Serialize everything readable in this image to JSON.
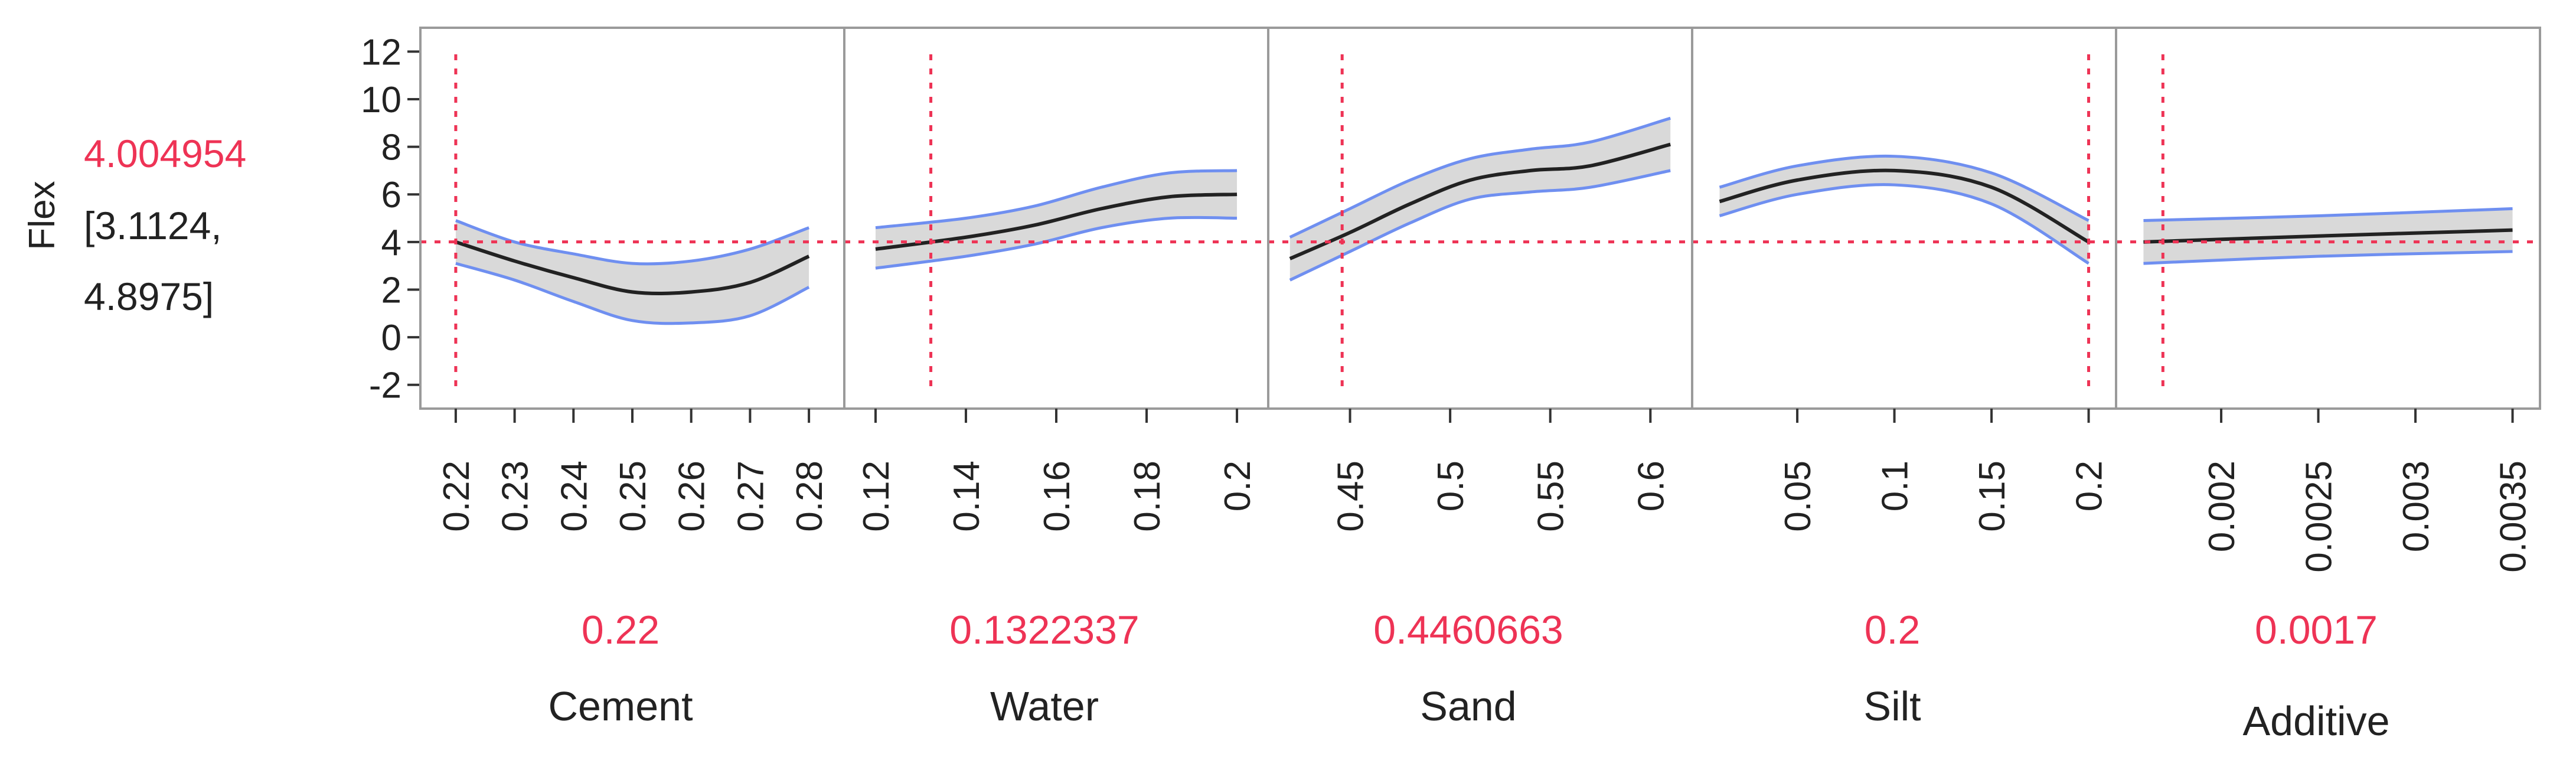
{
  "response": {
    "label": "Flex",
    "predicted": "4.004954",
    "ci_line1": "[3.1124,",
    "ci_line2": "4.8975]"
  },
  "colors": {
    "accent": "#ee3355",
    "band_fill": "#d9d9d9",
    "band_edge": "#6f8ff0",
    "line": "#222222",
    "frame": "#9a9a9a",
    "text": "#222222"
  },
  "chart_data": {
    "type": "line",
    "title": "",
    "ylabel": "Flex",
    "ylim": [
      -3.0,
      13.0
    ],
    "yticks": [
      "12",
      "10",
      "8",
      "6",
      "4",
      "2",
      "0",
      "-2"
    ],
    "current_y": 4.004954,
    "panels": [
      {
        "factor": "Cement",
        "current_value": "0.22",
        "current": 0.22,
        "xlim": [
          0.217,
          0.283
        ],
        "ticks": [
          "0.22",
          "0.23",
          "0.24",
          "0.25",
          "0.26",
          "0.27",
          "0.28"
        ],
        "series": [
          {
            "x": 0.22,
            "y": 4.0,
            "lower": 3.1,
            "upper": 4.9
          },
          {
            "x": 0.23,
            "y": 3.2,
            "lower": 2.4,
            "upper": 4.0
          },
          {
            "x": 0.24,
            "y": 2.5,
            "lower": 1.5,
            "upper": 3.5
          },
          {
            "x": 0.25,
            "y": 1.9,
            "lower": 0.7,
            "upper": 3.1
          },
          {
            "x": 0.26,
            "y": 1.9,
            "lower": 0.6,
            "upper": 3.2
          },
          {
            "x": 0.27,
            "y": 2.3,
            "lower": 0.9,
            "upper": 3.7
          },
          {
            "x": 0.28,
            "y": 3.4,
            "lower": 2.1,
            "upper": 4.6
          }
        ]
      },
      {
        "factor": "Water",
        "current_value": "0.1322337",
        "current": 0.1322337,
        "xlim": [
          0.117,
          0.203
        ],
        "ticks": [
          "0.12",
          "0.14",
          "0.16",
          "0.18",
          "0.2"
        ],
        "series": [
          {
            "x": 0.12,
            "y": 3.7,
            "lower": 2.9,
            "upper": 4.6
          },
          {
            "x": 0.14,
            "y": 4.2,
            "lower": 3.4,
            "upper": 5.0
          },
          {
            "x": 0.155,
            "y": 4.7,
            "lower": 3.9,
            "upper": 5.5
          },
          {
            "x": 0.17,
            "y": 5.4,
            "lower": 4.6,
            "upper": 6.3
          },
          {
            "x": 0.185,
            "y": 5.9,
            "lower": 5.0,
            "upper": 6.9
          },
          {
            "x": 0.2,
            "y": 6.0,
            "lower": 5.0,
            "upper": 7.0
          }
        ]
      },
      {
        "factor": "Sand",
        "current_value": "0.4460663",
        "current": 0.4460663,
        "xlim": [
          0.418,
          0.612
        ],
        "ticks": [
          "0.45",
          "0.5",
          "0.55",
          "0.6"
        ],
        "series": [
          {
            "x": 0.42,
            "y": 3.3,
            "lower": 2.4,
            "upper": 4.2
          },
          {
            "x": 0.45,
            "y": 4.4,
            "lower": 3.6,
            "upper": 5.4
          },
          {
            "x": 0.48,
            "y": 5.6,
            "lower": 4.8,
            "upper": 6.6
          },
          {
            "x": 0.51,
            "y": 6.6,
            "lower": 5.8,
            "upper": 7.5
          },
          {
            "x": 0.54,
            "y": 7.0,
            "lower": 6.1,
            "upper": 7.9
          },
          {
            "x": 0.57,
            "y": 7.2,
            "lower": 6.3,
            "upper": 8.2
          },
          {
            "x": 0.61,
            "y": 8.1,
            "lower": 7.0,
            "upper": 9.2
          }
        ]
      },
      {
        "factor": "Silt",
        "current_value": "0.2",
        "current": 0.2,
        "xlim": [
          0.005,
          0.205
        ],
        "ticks": [
          "0.05",
          "0.1",
          "0.15",
          "0.2"
        ],
        "series": [
          {
            "x": 0.01,
            "y": 5.7,
            "lower": 5.1,
            "upper": 6.3
          },
          {
            "x": 0.05,
            "y": 6.6,
            "lower": 6.0,
            "upper": 7.2
          },
          {
            "x": 0.1,
            "y": 7.0,
            "lower": 6.4,
            "upper": 7.6
          },
          {
            "x": 0.15,
            "y": 6.3,
            "lower": 5.6,
            "upper": 6.9
          },
          {
            "x": 0.2,
            "y": 4.0,
            "lower": 3.1,
            "upper": 4.9
          }
        ]
      },
      {
        "factor": "Additive",
        "current_value": "0.0017",
        "current": 0.0017,
        "xlim": [
          0.00155,
          0.00355
        ],
        "ticks": [
          "0.002",
          "0.0025",
          "0.003",
          "0.0035"
        ],
        "series": [
          {
            "x": 0.0016,
            "y": 4.0,
            "lower": 3.1,
            "upper": 4.9
          },
          {
            "x": 0.0025,
            "y": 4.25,
            "lower": 3.4,
            "upper": 5.1
          },
          {
            "x": 0.0035,
            "y": 4.5,
            "lower": 3.6,
            "upper": 5.4
          }
        ]
      }
    ]
  }
}
